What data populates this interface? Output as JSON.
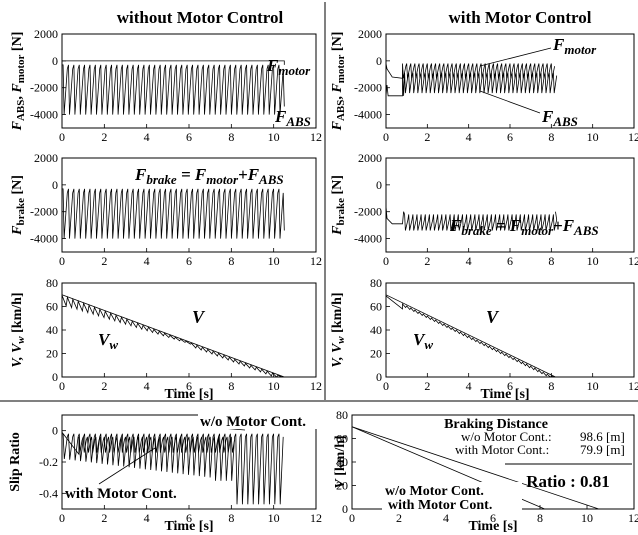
{
  "headers": {
    "left": "without Motor Control",
    "right": "with Motor Control"
  },
  "labels": {
    "ylabel_force": [
      "F",
      "ABS",
      ", ",
      "F",
      "motor",
      " [N]"
    ],
    "ylabel_brake": [
      "F",
      "brake",
      " [N]"
    ],
    "ylabel_speed": "V, V",
    "ylabel_speed_sub": "w",
    "ylabel_speed_unit": " [km/h]",
    "ylabel_slip": "Slip Ratio",
    "ylabel_v": "V",
    "ylabel_v_unit": " [km/h]",
    "xlabel_time": "Time [s]",
    "f_motor": "F",
    "f_motor_sub": "motor",
    "f_abs": "F",
    "f_abs_sub": "ABS",
    "eq_lhs": "F",
    "eq_lhs_sub": "brake",
    "eq_eq": " = ",
    "eq_m": "F",
    "eq_m_sub": "motor",
    "eq_plus": "+",
    "eq_a": "F",
    "eq_a_sub": "ABS",
    "v_label": "V",
    "vw_label": "V",
    "vw_sub": "w",
    "wo_motor_cont": "w/o Motor Cont.",
    "with_motor_cont": "with Motor Cont."
  },
  "braking_box": {
    "title": "Braking Distance",
    "line1_label": "w/o  Motor Cont.:",
    "line1_value": "98.6 [m]",
    "line2_label": "with  Motor Cont.:",
    "line2_value": "79.9 [m]",
    "ratio": "Ratio : 0.81"
  },
  "chart_data": [
    {
      "type": "line",
      "panel": "force_without",
      "xlim": [
        0,
        12
      ],
      "ylim": [
        -5000,
        2000
      ],
      "xticks": [
        0,
        2,
        4,
        6,
        8,
        10,
        12
      ],
      "yticks": [
        2000,
        0,
        -2000,
        -4000
      ],
      "series": [
        {
          "name": "F_motor",
          "x": [
            0,
            10.5
          ],
          "y": [
            0,
            0
          ]
        },
        {
          "name": "F_ABS",
          "x_range": [
            0,
            10.5
          ],
          "oscillation": {
            "min": -4000,
            "max": -300,
            "period": 0.255
          }
        }
      ]
    },
    {
      "type": "line",
      "panel": "force_with",
      "xlim": [
        0,
        12
      ],
      "ylim": [
        -5000,
        2000
      ],
      "xticks": [
        0,
        2,
        4,
        6,
        8,
        10,
        12
      ],
      "yticks": [
        2000,
        0,
        -2000,
        -4000
      ],
      "series": [
        {
          "name": "F_motor",
          "x_range": [
            0,
            8.2
          ],
          "level": -300
        },
        {
          "name": "F_ABS",
          "x_range": [
            0,
            8.2
          ],
          "level": -1500
        }
      ]
    },
    {
      "type": "line",
      "panel": "brake_without",
      "xlim": [
        0,
        12
      ],
      "ylim": [
        -5000,
        2000
      ],
      "xticks": [
        0,
        2,
        4,
        6,
        8,
        10,
        12
      ],
      "yticks": [
        2000,
        0,
        -2000,
        -4000
      ],
      "series": [
        {
          "name": "F_brake",
          "x_range": [
            0,
            10.5
          ],
          "oscillation": {
            "min": -4000,
            "max": -300,
            "period": 0.255
          }
        }
      ]
    },
    {
      "type": "line",
      "panel": "brake_with",
      "xlim": [
        0,
        12
      ],
      "ylim": [
        -5000,
        2000
      ],
      "xticks": [
        0,
        2,
        4,
        6,
        8,
        10,
        12
      ],
      "yticks": [
        2000,
        0,
        -2000,
        -4000
      ],
      "series": [
        {
          "name": "F_brake",
          "x_range": [
            0,
            8.2
          ],
          "oscillation": {
            "min": -3400,
            "max": -2200,
            "period": 0.2
          }
        }
      ]
    },
    {
      "type": "line",
      "panel": "speed_without",
      "xlim": [
        0,
        12
      ],
      "ylim": [
        0,
        80
      ],
      "xticks": [
        0,
        2,
        4,
        6,
        8,
        10,
        12
      ],
      "yticks": [
        80,
        60,
        40,
        20,
        0
      ],
      "series": [
        {
          "name": "V",
          "x": [
            0,
            10.5
          ],
          "y": [
            70,
            0
          ]
        },
        {
          "name": "V_w",
          "x_range": [
            0,
            10.5
          ]
        }
      ]
    },
    {
      "type": "line",
      "panel": "speed_with",
      "xlim": [
        0,
        12
      ],
      "ylim": [
        0,
        80
      ],
      "xticks": [
        0,
        2,
        4,
        6,
        8,
        10,
        12
      ],
      "yticks": [
        80,
        60,
        40,
        20,
        0
      ],
      "series": [
        {
          "name": "V",
          "x": [
            0,
            8.2
          ],
          "y": [
            70,
            0
          ]
        },
        {
          "name": "V_w",
          "x_range": [
            0,
            8.2
          ]
        }
      ]
    },
    {
      "type": "line",
      "panel": "slip",
      "xlim": [
        0,
        12
      ],
      "ylim": [
        -0.5,
        0.1
      ],
      "xticks": [
        0,
        2,
        4,
        6,
        8,
        10,
        12
      ],
      "yticks": [
        0,
        -0.2,
        -0.4
      ],
      "series": [
        {
          "name": "w/o Motor Cont.",
          "x_range": [
            0,
            10.5
          ]
        },
        {
          "name": "with Motor Cont.",
          "x_range": [
            0,
            8.2
          ]
        }
      ]
    },
    {
      "type": "line",
      "panel": "speed_compare",
      "xlim": [
        0,
        12
      ],
      "ylim": [
        0,
        80
      ],
      "xticks": [
        0,
        2,
        4,
        6,
        8,
        10,
        12
      ],
      "yticks": [
        80,
        60,
        40,
        20,
        0
      ],
      "series": [
        {
          "name": "w/o Motor Cont.",
          "x": [
            0,
            10.5
          ],
          "y": [
            70,
            0
          ]
        },
        {
          "name": "with Motor Cont.",
          "x": [
            0,
            8.2
          ],
          "y": [
            70,
            0
          ]
        }
      ]
    }
  ]
}
